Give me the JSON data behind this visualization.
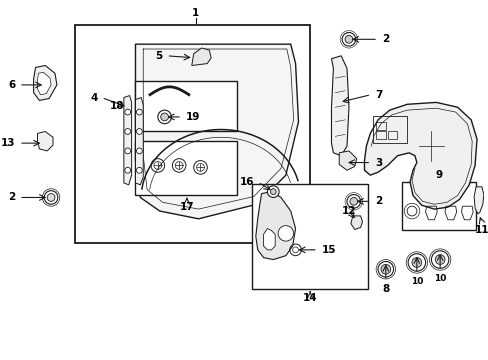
{
  "bg_color": "#ffffff",
  "line_color": "#1a1a1a",
  "text_color": "#000000",
  "fig_width": 4.89,
  "fig_height": 3.6,
  "dpi": 100,
  "label_fontsize": 7.5,
  "label_fontsize_small": 6.5
}
